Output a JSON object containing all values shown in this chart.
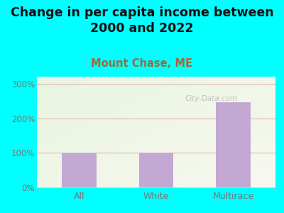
{
  "title": "Change in per capita income between\n2000 and 2022",
  "subtitle": "Mount Chase, ME",
  "categories": [
    "All",
    "White",
    "Multirace"
  ],
  "values": [
    100,
    100,
    247
  ],
  "bar_color": "#c4a8d4",
  "title_fontsize": 12.5,
  "subtitle_fontsize": 10.5,
  "subtitle_color": "#aa6633",
  "title_color": "#111111",
  "background_outer": "#00ffff",
  "ylim": [
    0,
    320
  ],
  "yticks": [
    0,
    100,
    200,
    300
  ],
  "ytick_labels": [
    "0%",
    "100%",
    "200%",
    "300%"
  ],
  "grid_color": "#ddaaaa",
  "watermark": "City-Data.com",
  "plot_bg_color_topleft": "#e8f5e0",
  "plot_bg_color_bottomright": "#f5f5ee",
  "tick_color": "#777777",
  "spine_color": "#cccccc"
}
